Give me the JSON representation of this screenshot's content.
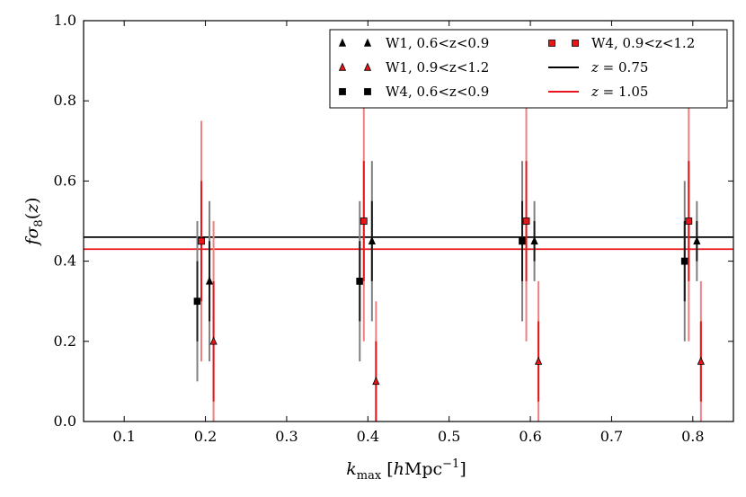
{
  "chart_data": {
    "type": "scatter",
    "title": "",
    "xlabel": "k_max [hMpc^-1]",
    "ylabel": "fσ8(z)",
    "xlim": [
      0.05,
      0.85
    ],
    "ylim": [
      0.0,
      1.0
    ],
    "xticks": [
      "0.1",
      "0.2",
      "0.3",
      "0.4",
      "0.5",
      "0.6",
      "0.7",
      "0.8"
    ],
    "yticks": [
      "0.0",
      "0.2",
      "0.4",
      "0.6",
      "0.8",
      "1.0"
    ],
    "legend_position": "top-right",
    "series": [
      {
        "name": "W1, 0.6<z<0.9",
        "marker": "triangle",
        "color": "#000000",
        "errcolor": "#808080",
        "x": [
          0.205,
          0.405,
          0.605,
          0.805
        ],
        "y": [
          0.35,
          0.45,
          0.45,
          0.45
        ],
        "err": [
          0.2,
          0.2,
          0.1,
          0.1
        ]
      },
      {
        "name": "W1, 0.9<z<1.2",
        "marker": "triangle",
        "color": "#e8161a",
        "errcolor": "#f08080",
        "x": [
          0.21,
          0.41,
          0.61,
          0.81
        ],
        "y": [
          0.2,
          0.1,
          0.15,
          0.15
        ],
        "err": [
          0.3,
          0.2,
          0.2,
          0.2
        ]
      },
      {
        "name": "W4, 0.6<z<0.9",
        "marker": "square",
        "color": "#000000",
        "errcolor": "#808080",
        "x": [
          0.19,
          0.39,
          0.59,
          0.79
        ],
        "y": [
          0.3,
          0.35,
          0.45,
          0.4
        ],
        "err": [
          0.2,
          0.2,
          0.2,
          0.2
        ]
      },
      {
        "name": "W4, 0.9<z<1.2",
        "marker": "square",
        "color": "#e8161a",
        "errcolor": "#f08080",
        "x": [
          0.195,
          0.395,
          0.595,
          0.795
        ],
        "y": [
          0.45,
          0.5,
          0.5,
          0.5
        ],
        "err": [
          0.3,
          0.3,
          0.3,
          0.3
        ]
      }
    ],
    "hlines": [
      {
        "name": "z=0.75",
        "label_z": "z",
        "label_val": "0.75",
        "y": 0.46,
        "color": "#000000"
      },
      {
        "name": "z=1.05",
        "label_z": "z",
        "label_val": "1.05",
        "y": 0.43,
        "color": "#e8161a"
      }
    ]
  }
}
